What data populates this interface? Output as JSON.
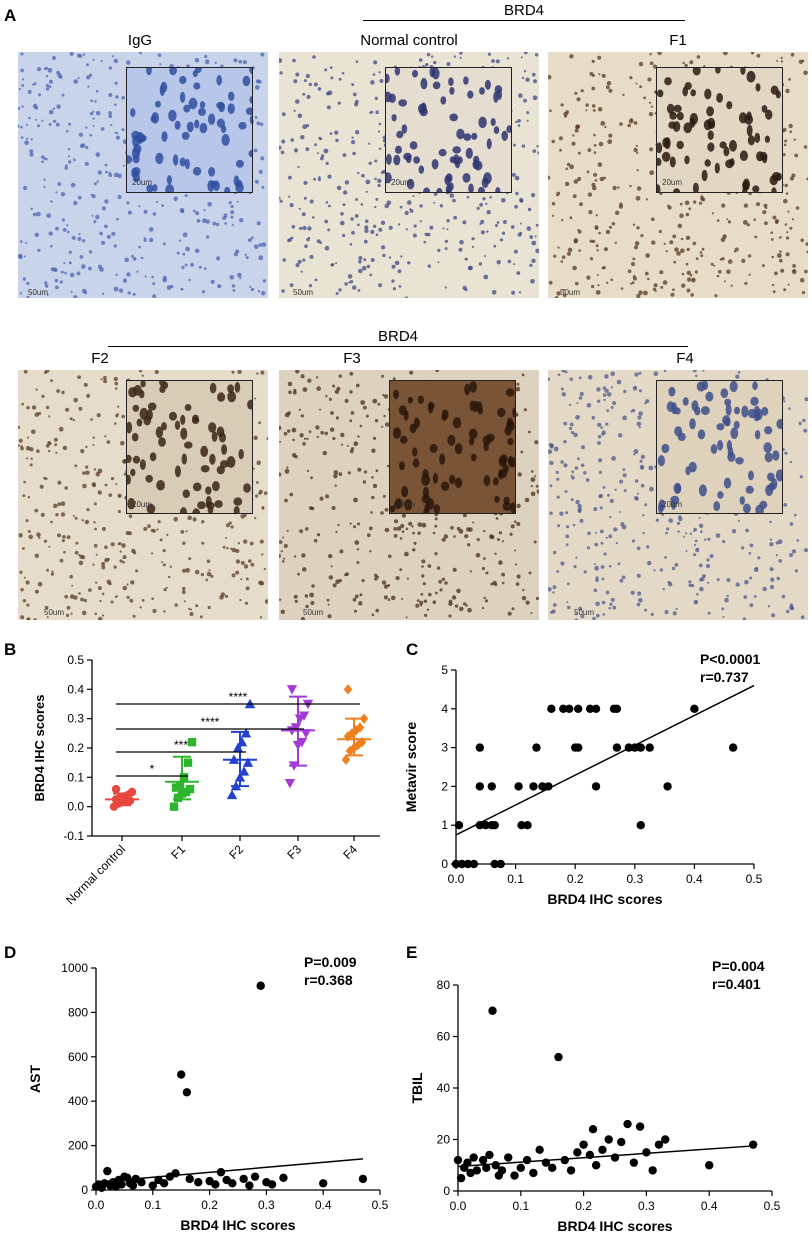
{
  "figure": {
    "panel_labels": [
      "A",
      "B",
      "C",
      "D",
      "E"
    ],
    "top_group": "BRD4",
    "bottom_group": "BRD4",
    "images": [
      {
        "title": "IgG",
        "inset_scale": "20um",
        "main_scale": "50um",
        "bg": "#c9d3ea",
        "dot": "#4a64b0",
        "inset_bg": "#b8c6ea",
        "inset_dot": "#2f4fa0"
      },
      {
        "title": "Normal control",
        "inset_scale": "20um",
        "main_scale": "50um",
        "bg": "#e9e3d3",
        "dot": "#3d4a86",
        "inset_bg": "#e4ddd0",
        "inset_dot": "#2e3570"
      },
      {
        "title": "F1",
        "inset_scale": "20um",
        "main_scale": "50um",
        "bg": "#e7dcc8",
        "dot": "#5a3a22",
        "inset_bg": "#e2d7c3",
        "inset_dot": "#2a1a10"
      },
      {
        "title": "F2",
        "inset_scale": "20um",
        "main_scale": "50um",
        "bg": "#e6dccb",
        "dot": "#5b3e26",
        "inset_bg": "#d8ccb6",
        "inset_dot": "#3b2416"
      },
      {
        "title": "F3",
        "inset_scale": "20um",
        "main_scale": "50um",
        "bg": "#ddd2bf",
        "dot": "#4a2d18",
        "inset_bg": "#7a5436",
        "inset_dot": "#2a170b"
      },
      {
        "title": "F4",
        "inset_scale": "20um",
        "main_scale": "50um",
        "bg": "#e3d9c6",
        "dot": "#4d5a8c",
        "inset_bg": "#ded2bd",
        "inset_dot": "#3e4f8a"
      }
    ]
  },
  "chart_data": [
    {
      "panel": "B",
      "type": "scatter",
      "ylabel": "BRD4 IHC scores",
      "ylim": [
        -0.1,
        0.5
      ],
      "yticks": [
        "-0.1",
        "0.0",
        "0.1",
        "0.2",
        "0.3",
        "0.4",
        "0.5"
      ],
      "categories": [
        "Normal control",
        "F1",
        "F2",
        "F3",
        "F4"
      ],
      "colors": [
        "#e8473f",
        "#2db52d",
        "#2340d0",
        "#a33ad6",
        "#f07f1c"
      ],
      "markers": [
        "circle",
        "square",
        "triangle",
        "triangle-down",
        "diamond"
      ],
      "series": [
        {
          "values": [
            0.0,
            0.01,
            0.015,
            0.02,
            0.02,
            0.025,
            0.03,
            0.035,
            0.04,
            0.05,
            0.06
          ],
          "mean": 0.025,
          "sd_low": 0.005,
          "sd_high": 0.045
        },
        {
          "values": [
            0.0,
            0.03,
            0.045,
            0.05,
            0.06,
            0.065,
            0.07,
            0.1,
            0.15,
            0.22
          ],
          "mean": 0.085,
          "sd_low": 0.025,
          "sd_high": 0.17
        },
        {
          "values": [
            0.04,
            0.07,
            0.1,
            0.12,
            0.15,
            0.16,
            0.2,
            0.22,
            0.25,
            0.35
          ],
          "mean": 0.16,
          "sd_low": 0.07,
          "sd_high": 0.255
        },
        {
          "values": [
            0.08,
            0.14,
            0.21,
            0.22,
            0.25,
            0.26,
            0.27,
            0.3,
            0.31,
            0.35,
            0.4
          ],
          "mean": 0.26,
          "sd_low": 0.14,
          "sd_high": 0.375
        },
        {
          "values": [
            0.16,
            0.19,
            0.2,
            0.21,
            0.22,
            0.24,
            0.25,
            0.26,
            0.27,
            0.3,
            0.4
          ],
          "mean": 0.23,
          "sd_low": 0.175,
          "sd_high": 0.3
        }
      ],
      "comparisons": [
        {
          "label": "*",
          "from": "Normal control",
          "to": "F1"
        },
        {
          "label": "***",
          "from": "Normal control",
          "to": "F2"
        },
        {
          "label": "****",
          "from": "Normal control",
          "to": "F3"
        },
        {
          "label": "****",
          "from": "Normal control",
          "to": "F4"
        }
      ]
    },
    {
      "panel": "C",
      "type": "scatter",
      "xlabel": "BRD4 IHC scores",
      "ylabel": "Metavir score",
      "xlim": [
        0.0,
        0.5
      ],
      "ylim": [
        0,
        5
      ],
      "xticks": [
        "0.0",
        "0.1",
        "0.2",
        "0.3",
        "0.4",
        "0.5"
      ],
      "yticks": [
        "0",
        "1",
        "2",
        "3",
        "4",
        "5"
      ],
      "annotation": [
        "P<0.0001",
        "r=0.737"
      ],
      "fit": [
        [
          0.0,
          0.75
        ],
        [
          0.5,
          4.6
        ]
      ],
      "points": [
        [
          0.0,
          0
        ],
        [
          0.01,
          0
        ],
        [
          0.02,
          0
        ],
        [
          0.03,
          0
        ],
        [
          0.065,
          0
        ],
        [
          0.075,
          0
        ],
        [
          0.005,
          1
        ],
        [
          0.04,
          1
        ],
        [
          0.05,
          1
        ],
        [
          0.06,
          1
        ],
        [
          0.065,
          1
        ],
        [
          0.11,
          1
        ],
        [
          0.12,
          1
        ],
        [
          0.31,
          1
        ],
        [
          0.04,
          2
        ],
        [
          0.06,
          2
        ],
        [
          0.105,
          2
        ],
        [
          0.13,
          2
        ],
        [
          0.145,
          2
        ],
        [
          0.155,
          2
        ],
        [
          0.235,
          2
        ],
        [
          0.355,
          2
        ],
        [
          0.04,
          3
        ],
        [
          0.135,
          3
        ],
        [
          0.2,
          3
        ],
        [
          0.205,
          3
        ],
        [
          0.27,
          3
        ],
        [
          0.29,
          3
        ],
        [
          0.3,
          3
        ],
        [
          0.31,
          3
        ],
        [
          0.325,
          3
        ],
        [
          0.465,
          3
        ],
        [
          0.16,
          4
        ],
        [
          0.18,
          4
        ],
        [
          0.19,
          4
        ],
        [
          0.205,
          4
        ],
        [
          0.225,
          4
        ],
        [
          0.235,
          4
        ],
        [
          0.265,
          4
        ],
        [
          0.27,
          4
        ],
        [
          0.4,
          4
        ]
      ]
    },
    {
      "panel": "D",
      "type": "scatter",
      "xlabel": "BRD4 IHC scores",
      "ylabel": "AST",
      "xlim": [
        0.0,
        0.5
      ],
      "ylim": [
        0,
        1000
      ],
      "xticks": [
        "0.0",
        "0.1",
        "0.2",
        "0.3",
        "0.4",
        "0.5"
      ],
      "yticks": [
        "0",
        "200",
        "400",
        "600",
        "800",
        "1000"
      ],
      "annotation": [
        "P=0.009",
        "r=0.368"
      ],
      "fit": [
        [
          0.0,
          35
        ],
        [
          0.47,
          140
        ]
      ],
      "points": [
        [
          0.0,
          15
        ],
        [
          0.005,
          25
        ],
        [
          0.01,
          10
        ],
        [
          0.015,
          30
        ],
        [
          0.02,
          85
        ],
        [
          0.025,
          20
        ],
        [
          0.03,
          35
        ],
        [
          0.035,
          15
        ],
        [
          0.04,
          45
        ],
        [
          0.045,
          25
        ],
        [
          0.05,
          60
        ],
        [
          0.055,
          55
        ],
        [
          0.06,
          30
        ],
        [
          0.065,
          20
        ],
        [
          0.07,
          50
        ],
        [
          0.08,
          35
        ],
        [
          0.1,
          20
        ],
        [
          0.11,
          45
        ],
        [
          0.12,
          30
        ],
        [
          0.13,
          60
        ],
        [
          0.14,
          75
        ],
        [
          0.15,
          520
        ],
        [
          0.16,
          440
        ],
        [
          0.165,
          50
        ],
        [
          0.18,
          35
        ],
        [
          0.2,
          40
        ],
        [
          0.21,
          25
        ],
        [
          0.22,
          80
        ],
        [
          0.23,
          45
        ],
        [
          0.24,
          30
        ],
        [
          0.26,
          50
        ],
        [
          0.27,
          20
        ],
        [
          0.28,
          60
        ],
        [
          0.29,
          920
        ],
        [
          0.3,
          35
        ],
        [
          0.31,
          25
        ],
        [
          0.33,
          55
        ],
        [
          0.4,
          30
        ],
        [
          0.47,
          50
        ]
      ]
    },
    {
      "panel": "E",
      "type": "scatter",
      "xlabel": "BRD4 IHC scores",
      "ylabel": "TBIL",
      "xlim": [
        0.0,
        0.5
      ],
      "ylim": [
        0,
        80
      ],
      "xticks": [
        "0.0",
        "0.1",
        "0.2",
        "0.3",
        "0.4",
        "0.5"
      ],
      "yticks": [
        "0",
        "20",
        "40",
        "60",
        "80"
      ],
      "annotation": [
        "P=0.004",
        "r=0.401"
      ],
      "fit": [
        [
          0.0,
          9.5
        ],
        [
          0.47,
          17.5
        ]
      ],
      "points": [
        [
          0.0,
          12
        ],
        [
          0.005,
          5
        ],
        [
          0.01,
          9
        ],
        [
          0.015,
          11
        ],
        [
          0.02,
          7
        ],
        [
          0.025,
          13
        ],
        [
          0.03,
          8
        ],
        [
          0.04,
          12
        ],
        [
          0.045,
          9
        ],
        [
          0.05,
          14
        ],
        [
          0.055,
          70
        ],
        [
          0.06,
          10
        ],
        [
          0.065,
          6
        ],
        [
          0.07,
          8
        ],
        [
          0.08,
          13
        ],
        [
          0.09,
          6
        ],
        [
          0.1,
          9
        ],
        [
          0.11,
          12
        ],
        [
          0.12,
          7
        ],
        [
          0.13,
          16
        ],
        [
          0.14,
          11
        ],
        [
          0.15,
          9
        ],
        [
          0.16,
          52
        ],
        [
          0.17,
          12
        ],
        [
          0.18,
          8
        ],
        [
          0.19,
          15
        ],
        [
          0.2,
          18
        ],
        [
          0.21,
          14
        ],
        [
          0.215,
          24
        ],
        [
          0.22,
          10
        ],
        [
          0.23,
          16
        ],
        [
          0.24,
          20
        ],
        [
          0.25,
          13
        ],
        [
          0.26,
          19
        ],
        [
          0.27,
          26
        ],
        [
          0.28,
          11
        ],
        [
          0.29,
          25
        ],
        [
          0.3,
          15
        ],
        [
          0.31,
          8
        ],
        [
          0.32,
          18
        ],
        [
          0.33,
          20
        ],
        [
          0.4,
          10
        ],
        [
          0.47,
          18
        ]
      ]
    }
  ]
}
